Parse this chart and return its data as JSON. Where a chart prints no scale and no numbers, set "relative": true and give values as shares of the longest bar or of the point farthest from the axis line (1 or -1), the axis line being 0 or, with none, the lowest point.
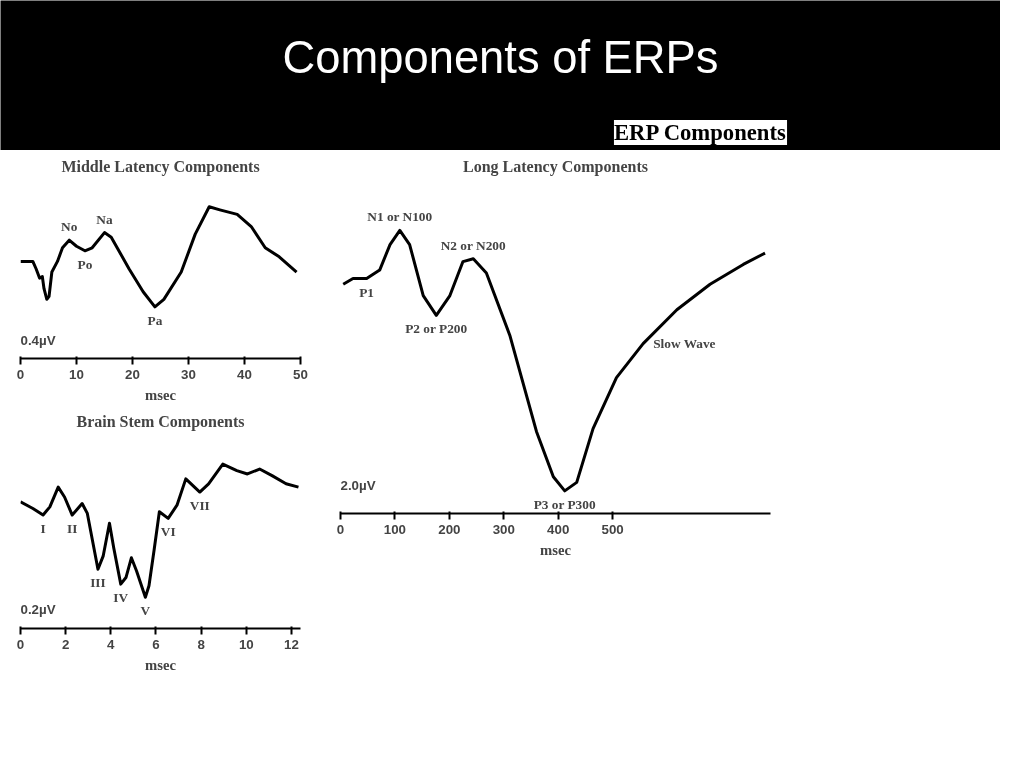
{
  "chart_data": [
    {
      "type": "other",
      "title": "Components of ERPs",
      "subtitle": "ERP Components"
    },
    {
      "type": "line",
      "title": "Middle Latency Components",
      "xlabel": "msec",
      "relative": true,
      "xlim": [
        0,
        50
      ],
      "xticks": [
        0,
        10,
        20,
        30,
        40,
        50
      ],
      "grid": false,
      "marker": "none",
      "line_style": "solid",
      "x": [
        0,
        2.2,
        2.8,
        3.4,
        3.9,
        4.2,
        4.7,
        5.1,
        5.6,
        6.6,
        7.5,
        8.7,
        10.0,
        11.5,
        12.8,
        15.0,
        16.2,
        19.4,
        21.9,
        24.0,
        25.6,
        28.7,
        31.2,
        33.7,
        35.6,
        38.7,
        41.2,
        43.7,
        46.2,
        49.3
      ],
      "series": [
        {
          "color": "#000000",
          "values": [
            0.64,
            0.64,
            0.59,
            0.53,
            0.54,
            0.46,
            0.39,
            0.41,
            0.57,
            0.64,
            0.73,
            0.78,
            0.74,
            0.71,
            0.73,
            0.83,
            0.8,
            0.59,
            0.44,
            0.34,
            0.39,
            0.57,
            0.82,
            1.0,
            0.98,
            0.95,
            0.87,
            0.73,
            0.67,
            0.57
          ]
        }
      ],
      "annotations": [
        {
          "text": "No",
          "x": 8.7,
          "y": 0.78
        },
        {
          "text": "Po",
          "x": 11.5,
          "y": 0.71
        },
        {
          "text": "Na",
          "x": 15.0,
          "y": 0.83
        },
        {
          "text": "Pa",
          "x": 24.0,
          "y": 0.34
        },
        "0.4µV"
      ]
    },
    {
      "type": "line",
      "title": "Brain Stem Components",
      "xlabel": "msec",
      "relative": true,
      "xlim": [
        0,
        12.4
      ],
      "xticks": [
        0,
        2,
        4,
        6,
        8,
        10,
        12
      ],
      "grid": false,
      "marker": "none",
      "line_style": "solid",
      "x": [
        0,
        0.55,
        1.0,
        1.3,
        1.67,
        1.95,
        2.29,
        2.73,
        2.96,
        3.43,
        3.66,
        3.94,
        4.13,
        4.44,
        4.67,
        4.91,
        5.14,
        5.53,
        5.69,
        5.92,
        6.15,
        6.54,
        6.93,
        7.32,
        7.94,
        8.33,
        8.96,
        9.58,
        10.05,
        10.59,
        11.14,
        11.76,
        12.31
      ],
      "series": [
        {
          "color": "#000000",
          "values": [
            0.77,
            0.73,
            0.69,
            0.74,
            0.86,
            0.8,
            0.69,
            0.76,
            0.7,
            0.36,
            0.44,
            0.64,
            0.49,
            0.27,
            0.31,
            0.43,
            0.35,
            0.19,
            0.26,
            0.48,
            0.71,
            0.67,
            0.75,
            0.91,
            0.83,
            0.88,
            1.0,
            0.96,
            0.94,
            0.97,
            0.93,
            0.88,
            0.86
          ]
        }
      ],
      "annotations": [
        {
          "text": "I",
          "x": 1.0,
          "y": 0.69
        },
        {
          "text": "II",
          "x": 2.29,
          "y": 0.69
        },
        {
          "text": "III",
          "x": 3.43,
          "y": 0.36
        },
        {
          "text": "IV",
          "x": 4.44,
          "y": 0.27
        },
        {
          "text": "V",
          "x": 5.53,
          "y": 0.19
        },
        {
          "text": "VI",
          "x": 6.54,
          "y": 0.67
        },
        {
          "text": "VII",
          "x": 7.94,
          "y": 0.83
        },
        "0.2µV"
      ]
    },
    {
      "type": "line",
      "title": "Long Latency Components",
      "xlabel": "msec",
      "relative": true,
      "xlim": [
        0,
        790
      ],
      "xticks": [
        0,
        100,
        200,
        300,
        400,
        500
      ],
      "grid": false,
      "marker": "none",
      "line_style": "solid",
      "x": [
        5,
        23,
        48,
        72,
        91,
        109,
        127,
        152,
        176,
        201,
        225,
        244,
        268,
        311,
        360,
        391,
        412,
        434,
        464,
        507,
        556,
        618,
        679,
        740,
        780
      ],
      "series": [
        {
          "color": "#000000",
          "values": [
            0.81,
            0.83,
            0.83,
            0.86,
            0.95,
            1.0,
            0.95,
            0.77,
            0.7,
            0.77,
            0.89,
            0.9,
            0.85,
            0.63,
            0.29,
            0.13,
            0.08,
            0.11,
            0.3,
            0.48,
            0.6,
            0.72,
            0.81,
            0.88,
            0.92
          ]
        }
      ],
      "annotations": [
        {
          "text": "P1",
          "x": 48,
          "y": 0.83
        },
        {
          "text": "N1 or N100",
          "x": 109,
          "y": 1.0
        },
        {
          "text": "P2 or P200",
          "x": 176,
          "y": 0.7
        },
        {
          "text": "N2 or N200",
          "x": 244,
          "y": 0.9
        },
        {
          "text": "P3 or P300",
          "x": 412,
          "y": 0.08
        },
        {
          "text": "Slow Wave",
          "x": 556,
          "y": 0.6
        },
        "2.0µV"
      ]
    }
  ]
}
